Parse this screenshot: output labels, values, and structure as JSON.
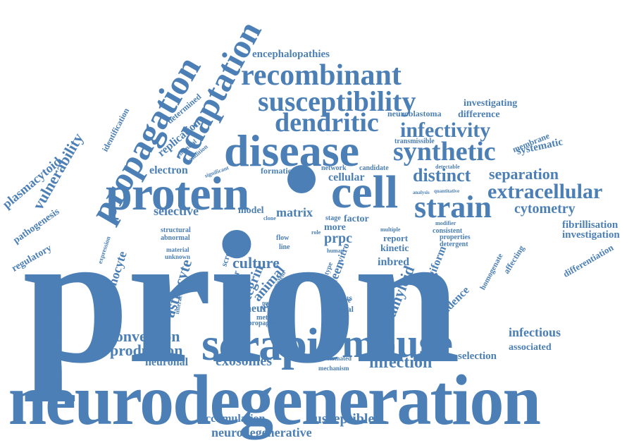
{
  "color": "#4b7fb5",
  "words": {
    "prion": "prion",
    "neurodegeneration": "neurodegeneration",
    "scrapie": "scrapie",
    "mouse": "mouse",
    "cell": "cell",
    "protein": "protein",
    "disease": "disease",
    "strain": "strain",
    "propagation": "propagation",
    "adaptation": "adaptation",
    "recombinant": "recombinant",
    "susceptibility": "susceptibility",
    "dendritic": "dendritic",
    "synthetic": "synthetic",
    "infectivity": "infectivity",
    "extracellular": "extracellular",
    "separation": "separation",
    "distinct": "distinct",
    "cytometry": "cytometry",
    "infection": "infection",
    "conversion": "conversion",
    "production": "production",
    "exosomes": "exosomes",
    "neuronal": "neuronal",
    "accumulation": "accumulation",
    "susceptible": "susceptible",
    "neurodegenerative": "neurodegenerative",
    "vulnerability": "vulnerability",
    "plasmacytoid": "plasmacytoid",
    "pathogenesis": "pathogenesis",
    "regulatory": "regulatory",
    "lymphocyte": "lymphocyte",
    "astrocyte": "astrocyte",
    "selective": "selective",
    "electron": "electron",
    "model": "model",
    "matrix": "matrix",
    "cellular": "cellular",
    "culture": "culture",
    "integrin": "integrin",
    "animal": "animal",
    "neuron": "neuron",
    "amyloid": "amyloid",
    "spongiform": "spongiform",
    "evidence": "evidence",
    "infectious": "infectious",
    "selection": "selection",
    "associated": "associated",
    "fibrillisation": "fibrillisation",
    "investigation": "investigation",
    "differentiation": "differentiation",
    "systematic": "systematic",
    "membrane": "membrane",
    "investigating": "investigating",
    "difference": "difference",
    "neuroblastoma": "neuroblastoma",
    "encephalopathies": "encephalopathies",
    "replication": "replication",
    "determined": "determined",
    "identification": "identification",
    "spleen": "spleen",
    "inbred": "inbred",
    "kinetic": "kinetic",
    "report": "report",
    "factor": "factor",
    "prpc": "prpc",
    "more": "more",
    "stage": "stage",
    "physical": "physical",
    "various": "various",
    "sequester": "sequester",
    "screen": "screen",
    "precede": "precede",
    "method": "method",
    "propagate": "propagate",
    "mechanism": "mechanism",
    "automated": "automated",
    "formation": "formation",
    "transmissible": "transmissible",
    "candidate": "candidate",
    "network": "network",
    "homogenate": "homogenate",
    "affecting": "affecting",
    "silencing": "silencing",
    "detergent": "detergent",
    "consistent": "consistent",
    "properties": "properties",
    "modifier": "modifier",
    "quantitative": "quantitative",
    "structural": "structural",
    "abnormal": "abnormal",
    "material": "material",
    "expression": "expression",
    "interaction": "interaction",
    "flow": "flow",
    "line": "line",
    "vitro": "vitro",
    "exposure": "exposure",
    "chemical": "chemical",
    "condition": "condition",
    "significant": "significant",
    "detectable": "detectable",
    "analysis": "analysis",
    "multiple": "multiple",
    "unknown": "unknown",
    "human": "human",
    "number": "number",
    "system": "system",
    "clone": "clone",
    "type": "type",
    "role": "role"
  }
}
